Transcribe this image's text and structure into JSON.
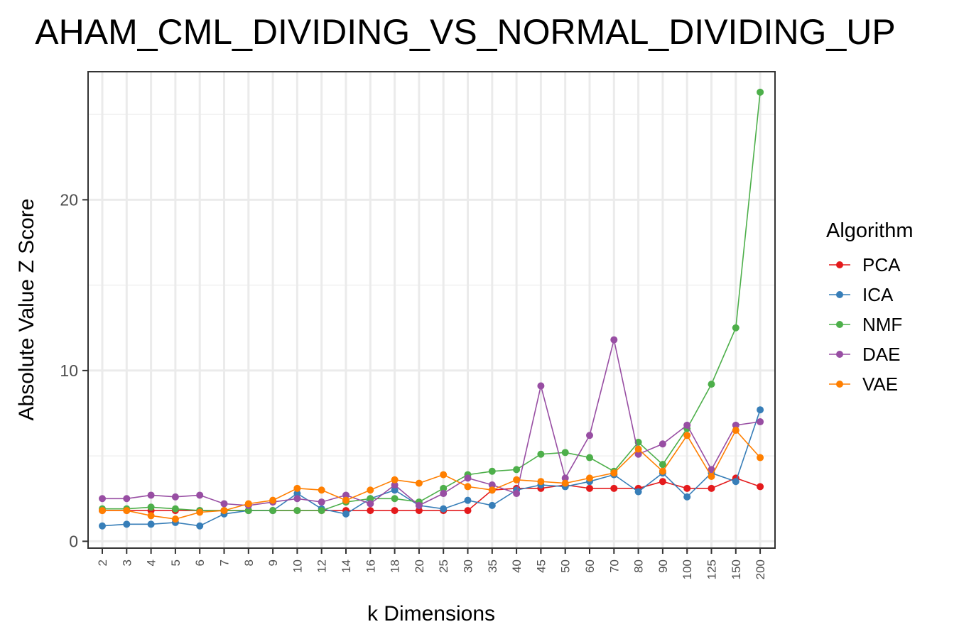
{
  "chart_data": {
    "type": "line",
    "title": "AHAM_CML_DIVIDING_VS_NORMAL_DIVIDING_UP",
    "xlabel": "k Dimensions",
    "ylabel": "Absolute Value Z Score",
    "categories": [
      "2",
      "3",
      "4",
      "5",
      "6",
      "7",
      "8",
      "9",
      "10",
      "12",
      "14",
      "16",
      "18",
      "20",
      "25",
      "30",
      "35",
      "40",
      "45",
      "50",
      "60",
      "70",
      "80",
      "90",
      "100",
      "125",
      "150",
      "200"
    ],
    "yticks": [
      0,
      10,
      20
    ],
    "ylim": [
      -0.4,
      27.5
    ],
    "grid": true,
    "legend": {
      "title": "Algorithm",
      "position": "right"
    },
    "series": [
      {
        "name": "PCA",
        "color": "#E41A1C",
        "values": [
          1.8,
          1.8,
          1.8,
          1.8,
          1.8,
          1.8,
          1.8,
          1.8,
          1.8,
          1.8,
          1.8,
          1.8,
          1.8,
          1.8,
          1.8,
          1.8,
          3.0,
          3.1,
          3.1,
          3.3,
          3.1,
          3.1,
          3.1,
          3.5,
          3.1,
          3.1,
          3.7,
          3.2
        ]
      },
      {
        "name": "ICA",
        "color": "#377EB8",
        "values": [
          0.9,
          1.0,
          1.0,
          1.1,
          0.9,
          1.6,
          1.8,
          1.8,
          2.8,
          1.9,
          1.6,
          2.5,
          3.0,
          2.1,
          1.9,
          2.4,
          2.1,
          3.0,
          3.3,
          3.2,
          3.5,
          3.9,
          2.9,
          4.0,
          2.6,
          4.0,
          3.5,
          7.7
        ]
      },
      {
        "name": "NMF",
        "color": "#4DAF4A",
        "values": [
          1.9,
          1.9,
          2.0,
          1.9,
          1.8,
          1.8,
          1.8,
          1.8,
          1.8,
          1.8,
          2.3,
          2.5,
          2.5,
          2.3,
          3.1,
          3.9,
          4.1,
          4.2,
          5.1,
          5.2,
          4.9,
          4.1,
          5.8,
          4.5,
          6.6,
          9.2,
          12.5,
          26.3
        ]
      },
      {
        "name": "DAE",
        "color": "#984EA3",
        "values": [
          2.5,
          2.5,
          2.7,
          2.6,
          2.7,
          2.2,
          2.1,
          2.3,
          2.5,
          2.3,
          2.7,
          2.2,
          3.3,
          2.1,
          2.8,
          3.7,
          3.3,
          2.8,
          9.1,
          3.7,
          6.2,
          11.8,
          5.1,
          5.7,
          6.8,
          4.2,
          6.8,
          7.0
        ]
      },
      {
        "name": "VAE",
        "color": "#FF7F00",
        "values": [
          1.8,
          1.8,
          1.5,
          1.3,
          1.7,
          1.8,
          2.2,
          2.4,
          3.1,
          3.0,
          2.4,
          3.0,
          3.6,
          3.4,
          3.9,
          3.2,
          3.0,
          3.6,
          3.5,
          3.4,
          3.7,
          4.0,
          5.4,
          4.1,
          6.2,
          3.8,
          6.5,
          4.9
        ]
      }
    ]
  }
}
